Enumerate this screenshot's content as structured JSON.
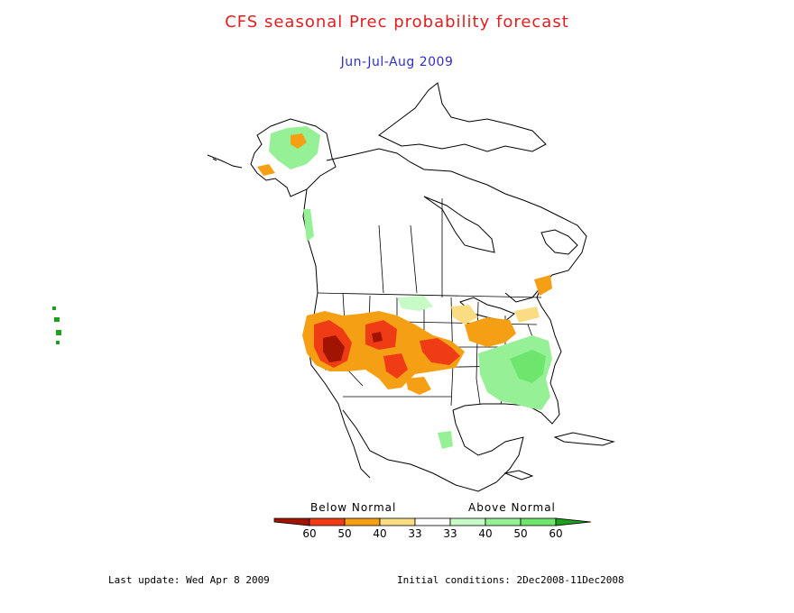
{
  "title": "CFS seasonal Prec probability forecast",
  "subtitle": "Jun-Jul-Aug 2009",
  "colors": {
    "title": "#e02020",
    "subtitle": "#3030c0",
    "below_60": "#a01400",
    "below_50": "#f03c14",
    "below_40": "#f5a014",
    "below_33": "#fadc82",
    "above_33": "#c8fac8",
    "above_40": "#96f096",
    "above_50": "#6ee66e",
    "above_60": "#1ea01e",
    "outline": "#000000"
  },
  "legend": {
    "below_label": "Below Normal",
    "above_label": "Above Normal",
    "tick_labels": [
      "60",
      "50",
      "40",
      "33",
      "33",
      "40",
      "50",
      "60"
    ]
  },
  "footer": {
    "last_update": "Last update: Wed Apr 8 2009",
    "initial_conditions": "Initial conditions: 2Dec2008-11Dec2008"
  }
}
